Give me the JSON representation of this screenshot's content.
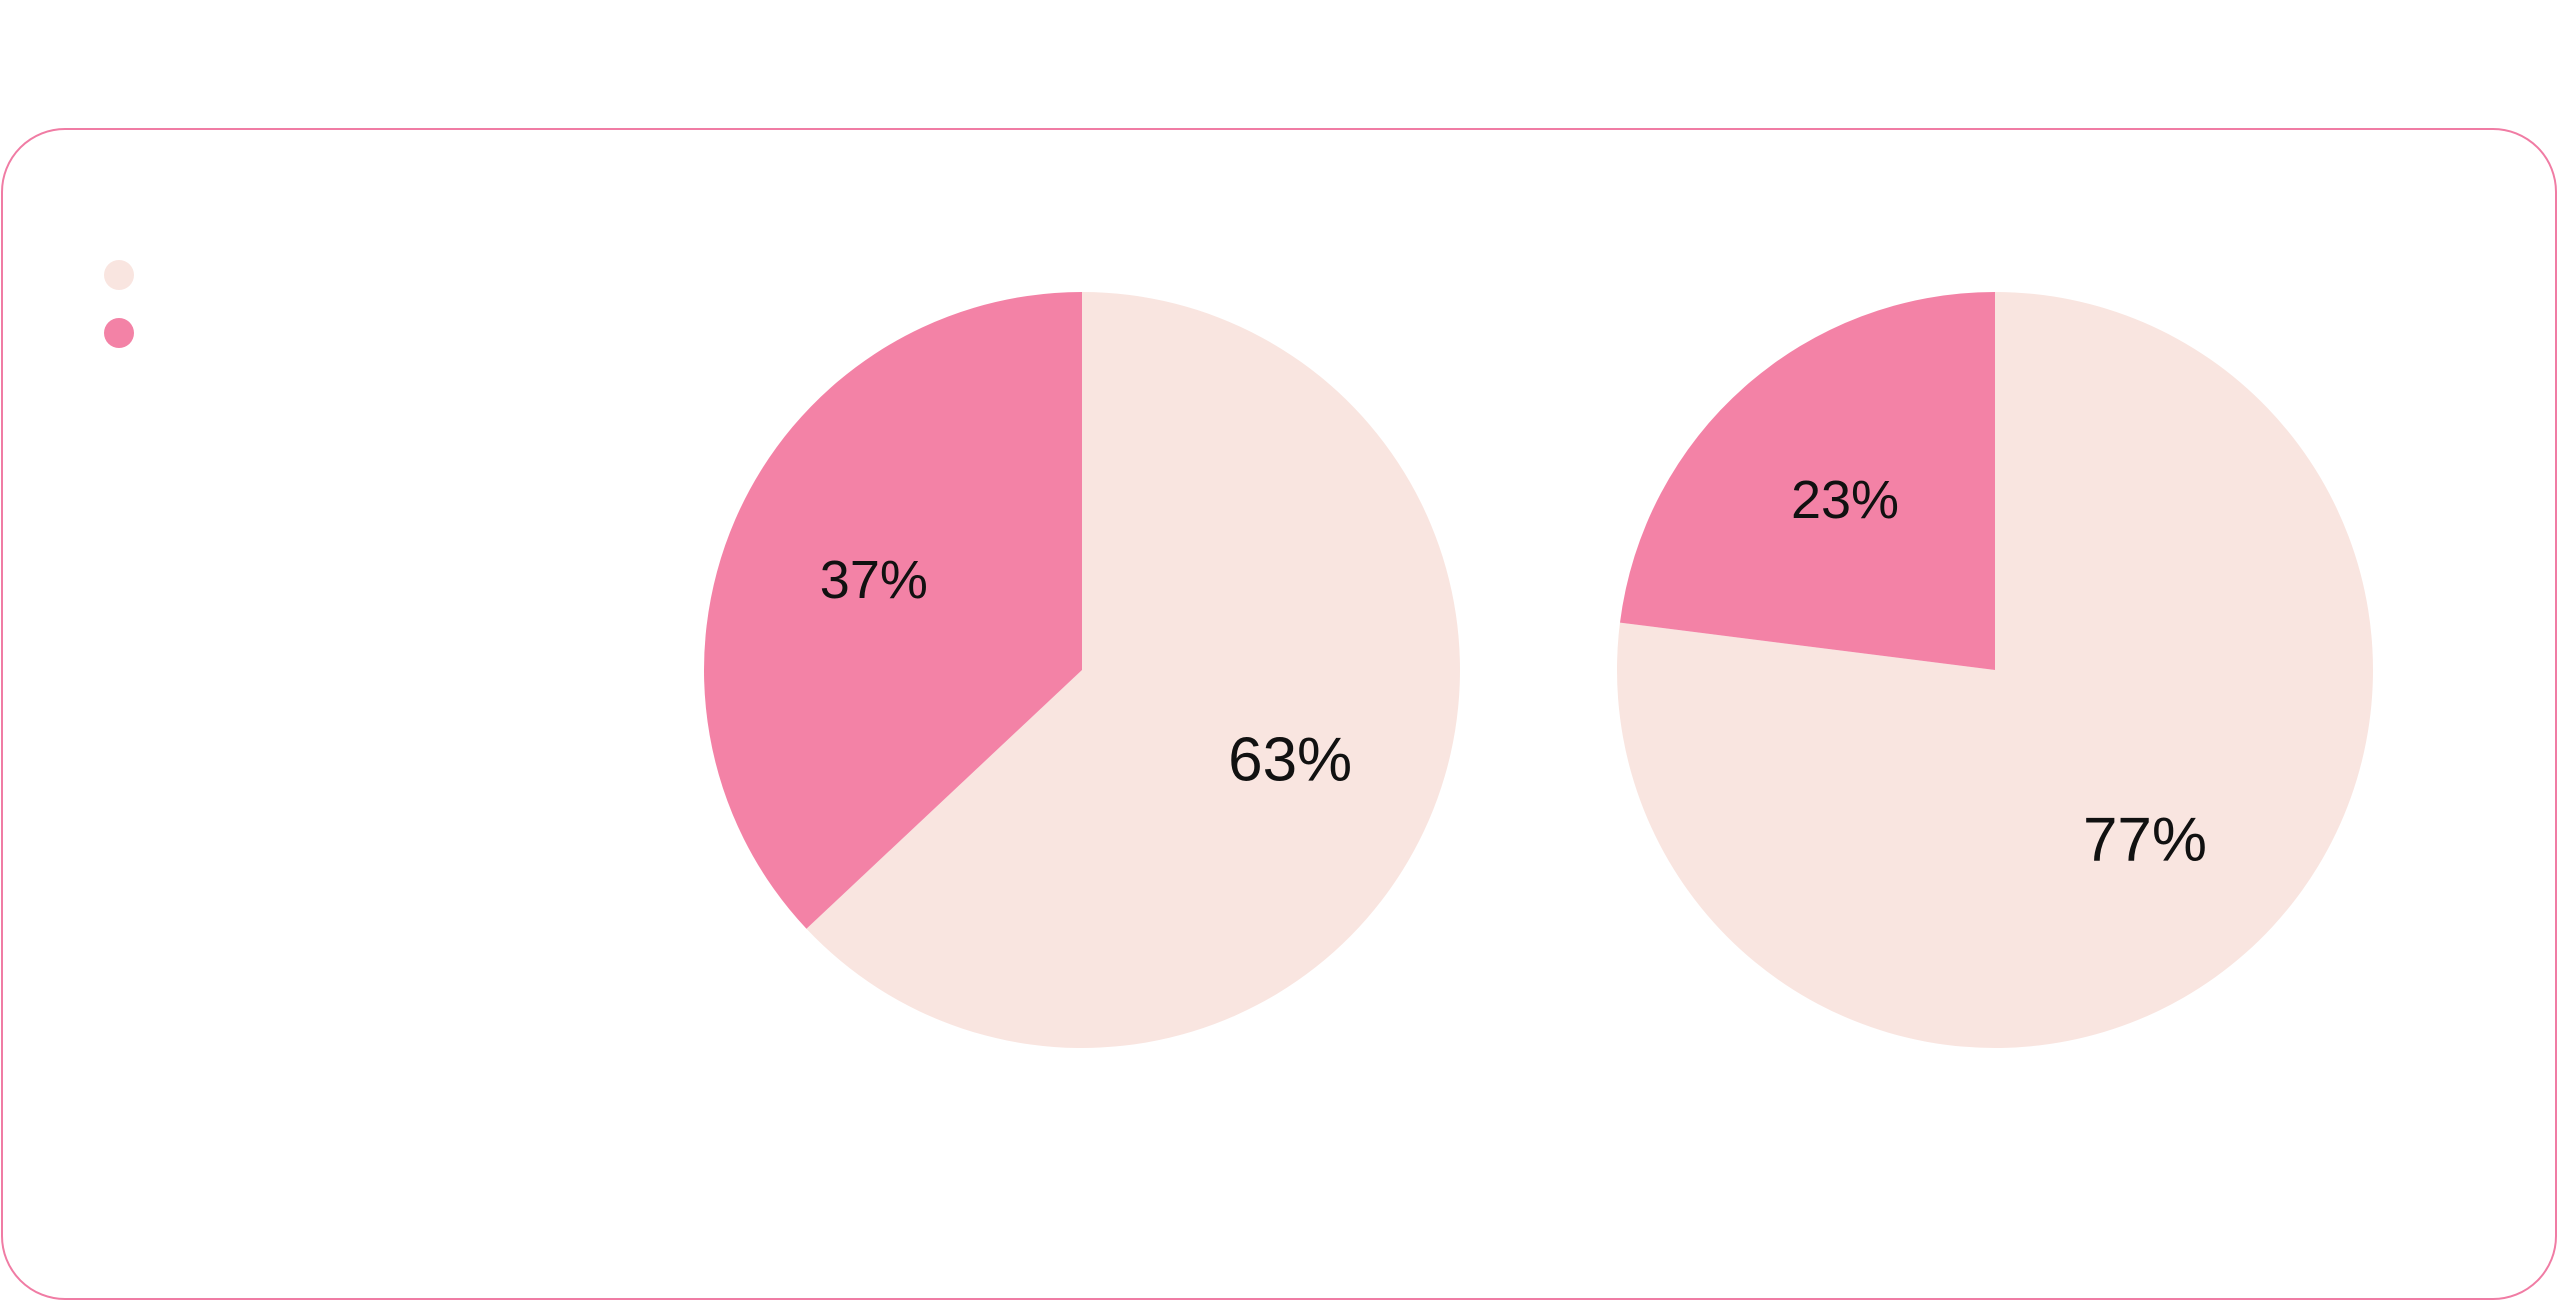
{
  "chart_data": {
    "type": "pie",
    "title": "",
    "legend": {
      "placement": "top-left",
      "entries": [
        {
          "name": "",
          "color": "#f9e5e0"
        },
        {
          "name": "",
          "color": "#f382a6"
        }
      ]
    },
    "pies": [
      {
        "slices": [
          {
            "value": 63,
            "label": "63%",
            "color": "#f9e5e0"
          },
          {
            "value": 37,
            "label": "37%",
            "color": "#f382a6"
          }
        ]
      },
      {
        "slices": [
          {
            "value": 77,
            "label": "77%",
            "color": "#f9e5e0"
          },
          {
            "value": 23,
            "label": "23%",
            "color": "#f382a6"
          }
        ]
      }
    ]
  },
  "colors": {
    "card_border": "#f07ca4",
    "slice_light": "#f9e5e0",
    "slice_pink": "#f382a6"
  }
}
